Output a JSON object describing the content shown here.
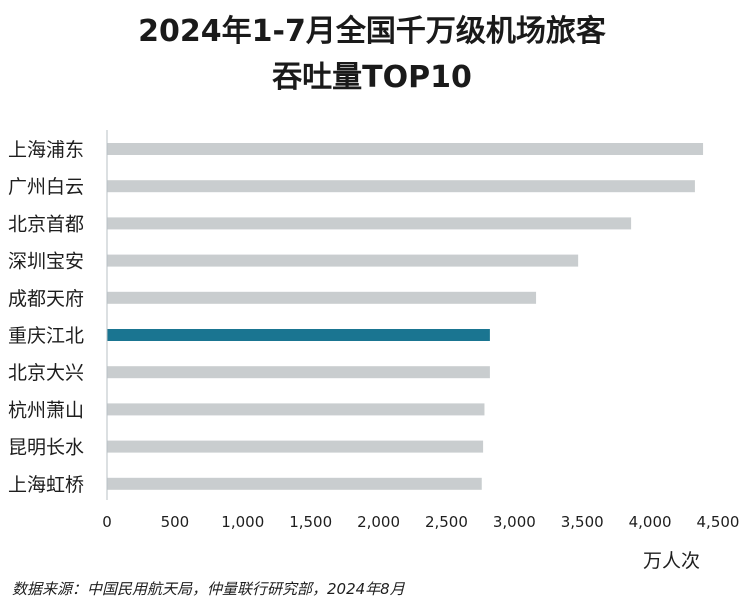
{
  "title_line1": "2024年1-7月全国千万级机场旅客",
  "title_line2": "吞吐量TOP10",
  "source": "数据来源：中国民用航天局，仲量联行研究部，2024年8月",
  "colors": {
    "bar": "#c9cdcf",
    "highlight": "#1a7591",
    "axis": "#b8c0c4",
    "text": "#1e1e1e"
  },
  "chart_data": {
    "type": "bar",
    "orientation": "horizontal",
    "categories": [
      "上海浦东",
      "广州白云",
      "北京首都",
      "深圳宝安",
      "成都天府",
      "重庆江北",
      "北京大兴",
      "杭州萧山",
      "昆明长水",
      "上海虹桥"
    ],
    "values": [
      4390,
      4330,
      3860,
      3470,
      3160,
      2820,
      2820,
      2780,
      2770,
      2760
    ],
    "highlight_category": "重庆江北",
    "xlim": [
      0,
      4500
    ],
    "xticks": [
      0,
      500,
      1000,
      1500,
      2000,
      2500,
      3000,
      3500,
      4000,
      4500
    ],
    "xtick_labels": [
      "0",
      "500",
      "1,000",
      "1,500",
      "2,000",
      "2,500",
      "3,000",
      "3,500",
      "4,000",
      "4,500"
    ],
    "xlabel": "万人次",
    "grid": false
  }
}
